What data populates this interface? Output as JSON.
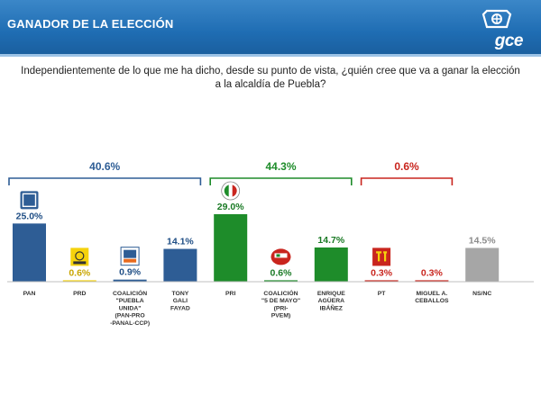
{
  "header": {
    "title": "GANADOR DE LA ELECCIÓN",
    "logo_text": "gce"
  },
  "question": "Independientemente de lo que me ha dicho, desde su punto de vista, ¿quién cree que va a ganar la elección a la alcaldía de Puebla?",
  "chart_data": {
    "type": "bar",
    "categories": [
      [
        "PAN"
      ],
      [
        "PRD"
      ],
      [
        "COALICIÓN",
        "\"PUEBLA",
        "UNIDA\"",
        "(PAN-PRO",
        "-PANAL-CCP)"
      ],
      [
        "TONY",
        "GALI",
        "FAYAD"
      ],
      [
        "PRI"
      ],
      [
        "COALICIÓN",
        "\"5 DE MAYO\"",
        "(PRI-",
        "PVEM)"
      ],
      [
        "ENRIQUE",
        "AGÜERA",
        "IBÁÑEZ"
      ],
      [
        "PT"
      ],
      [
        "MIGUEL A.",
        "CEBALLOS"
      ],
      [
        "NS/NC"
      ]
    ],
    "values": [
      25.0,
      0.6,
      0.9,
      14.1,
      29.0,
      0.6,
      14.7,
      0.3,
      0.3,
      14.5
    ],
    "labels": [
      "25.0%",
      "0.6%",
      "0.9%",
      "14.1%",
      "29.0%",
      "0.6%",
      "14.7%",
      "0.3%",
      "0.3%",
      "14.5%"
    ],
    "colors": [
      "#2e5d95",
      "#f5d20c",
      "#2e5d95",
      "#2e5d95",
      "#1e8c2a",
      "#1e8c2a",
      "#1e8c2a",
      "#c9251e",
      "#c9251e",
      "#a6a6a6"
    ],
    "label_colors": [
      "#1f4e85",
      "#c9a500",
      "#1f4e85",
      "#1f4e85",
      "#1a7a25",
      "#1a7a25",
      "#1a7a25",
      "#c9251e",
      "#c9251e",
      "#8c8c8c"
    ],
    "icons": [
      "pan-logo-icon",
      "prd-logo-icon",
      "puebla-unida-logo-icon",
      "",
      "pri-logo-icon",
      "cinco-de-mayo-logo-icon",
      "",
      "pt-logo-icon",
      "",
      ""
    ],
    "groups": [
      {
        "label": "40.6%",
        "from": 0,
        "to": 3,
        "color": "#2e5d95"
      },
      {
        "label": "44.3%",
        "from": 4,
        "to": 6,
        "color": "#1e8c2a"
      },
      {
        "label": "0.6%",
        "from": 7,
        "to": 8,
        "color": "#c9251e"
      }
    ],
    "ylim": [
      0,
      29.0
    ],
    "grid": false,
    "title": "",
    "xlabel": "",
    "ylabel": ""
  }
}
